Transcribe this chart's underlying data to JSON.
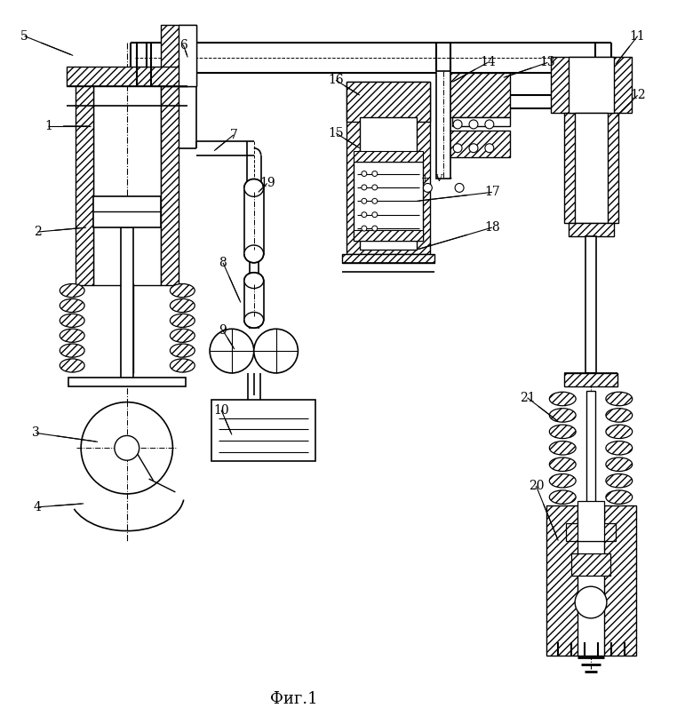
{
  "title": "Фиг.1",
  "title_fontsize": 13,
  "bg_color": "#ffffff",
  "line_color": "#000000"
}
